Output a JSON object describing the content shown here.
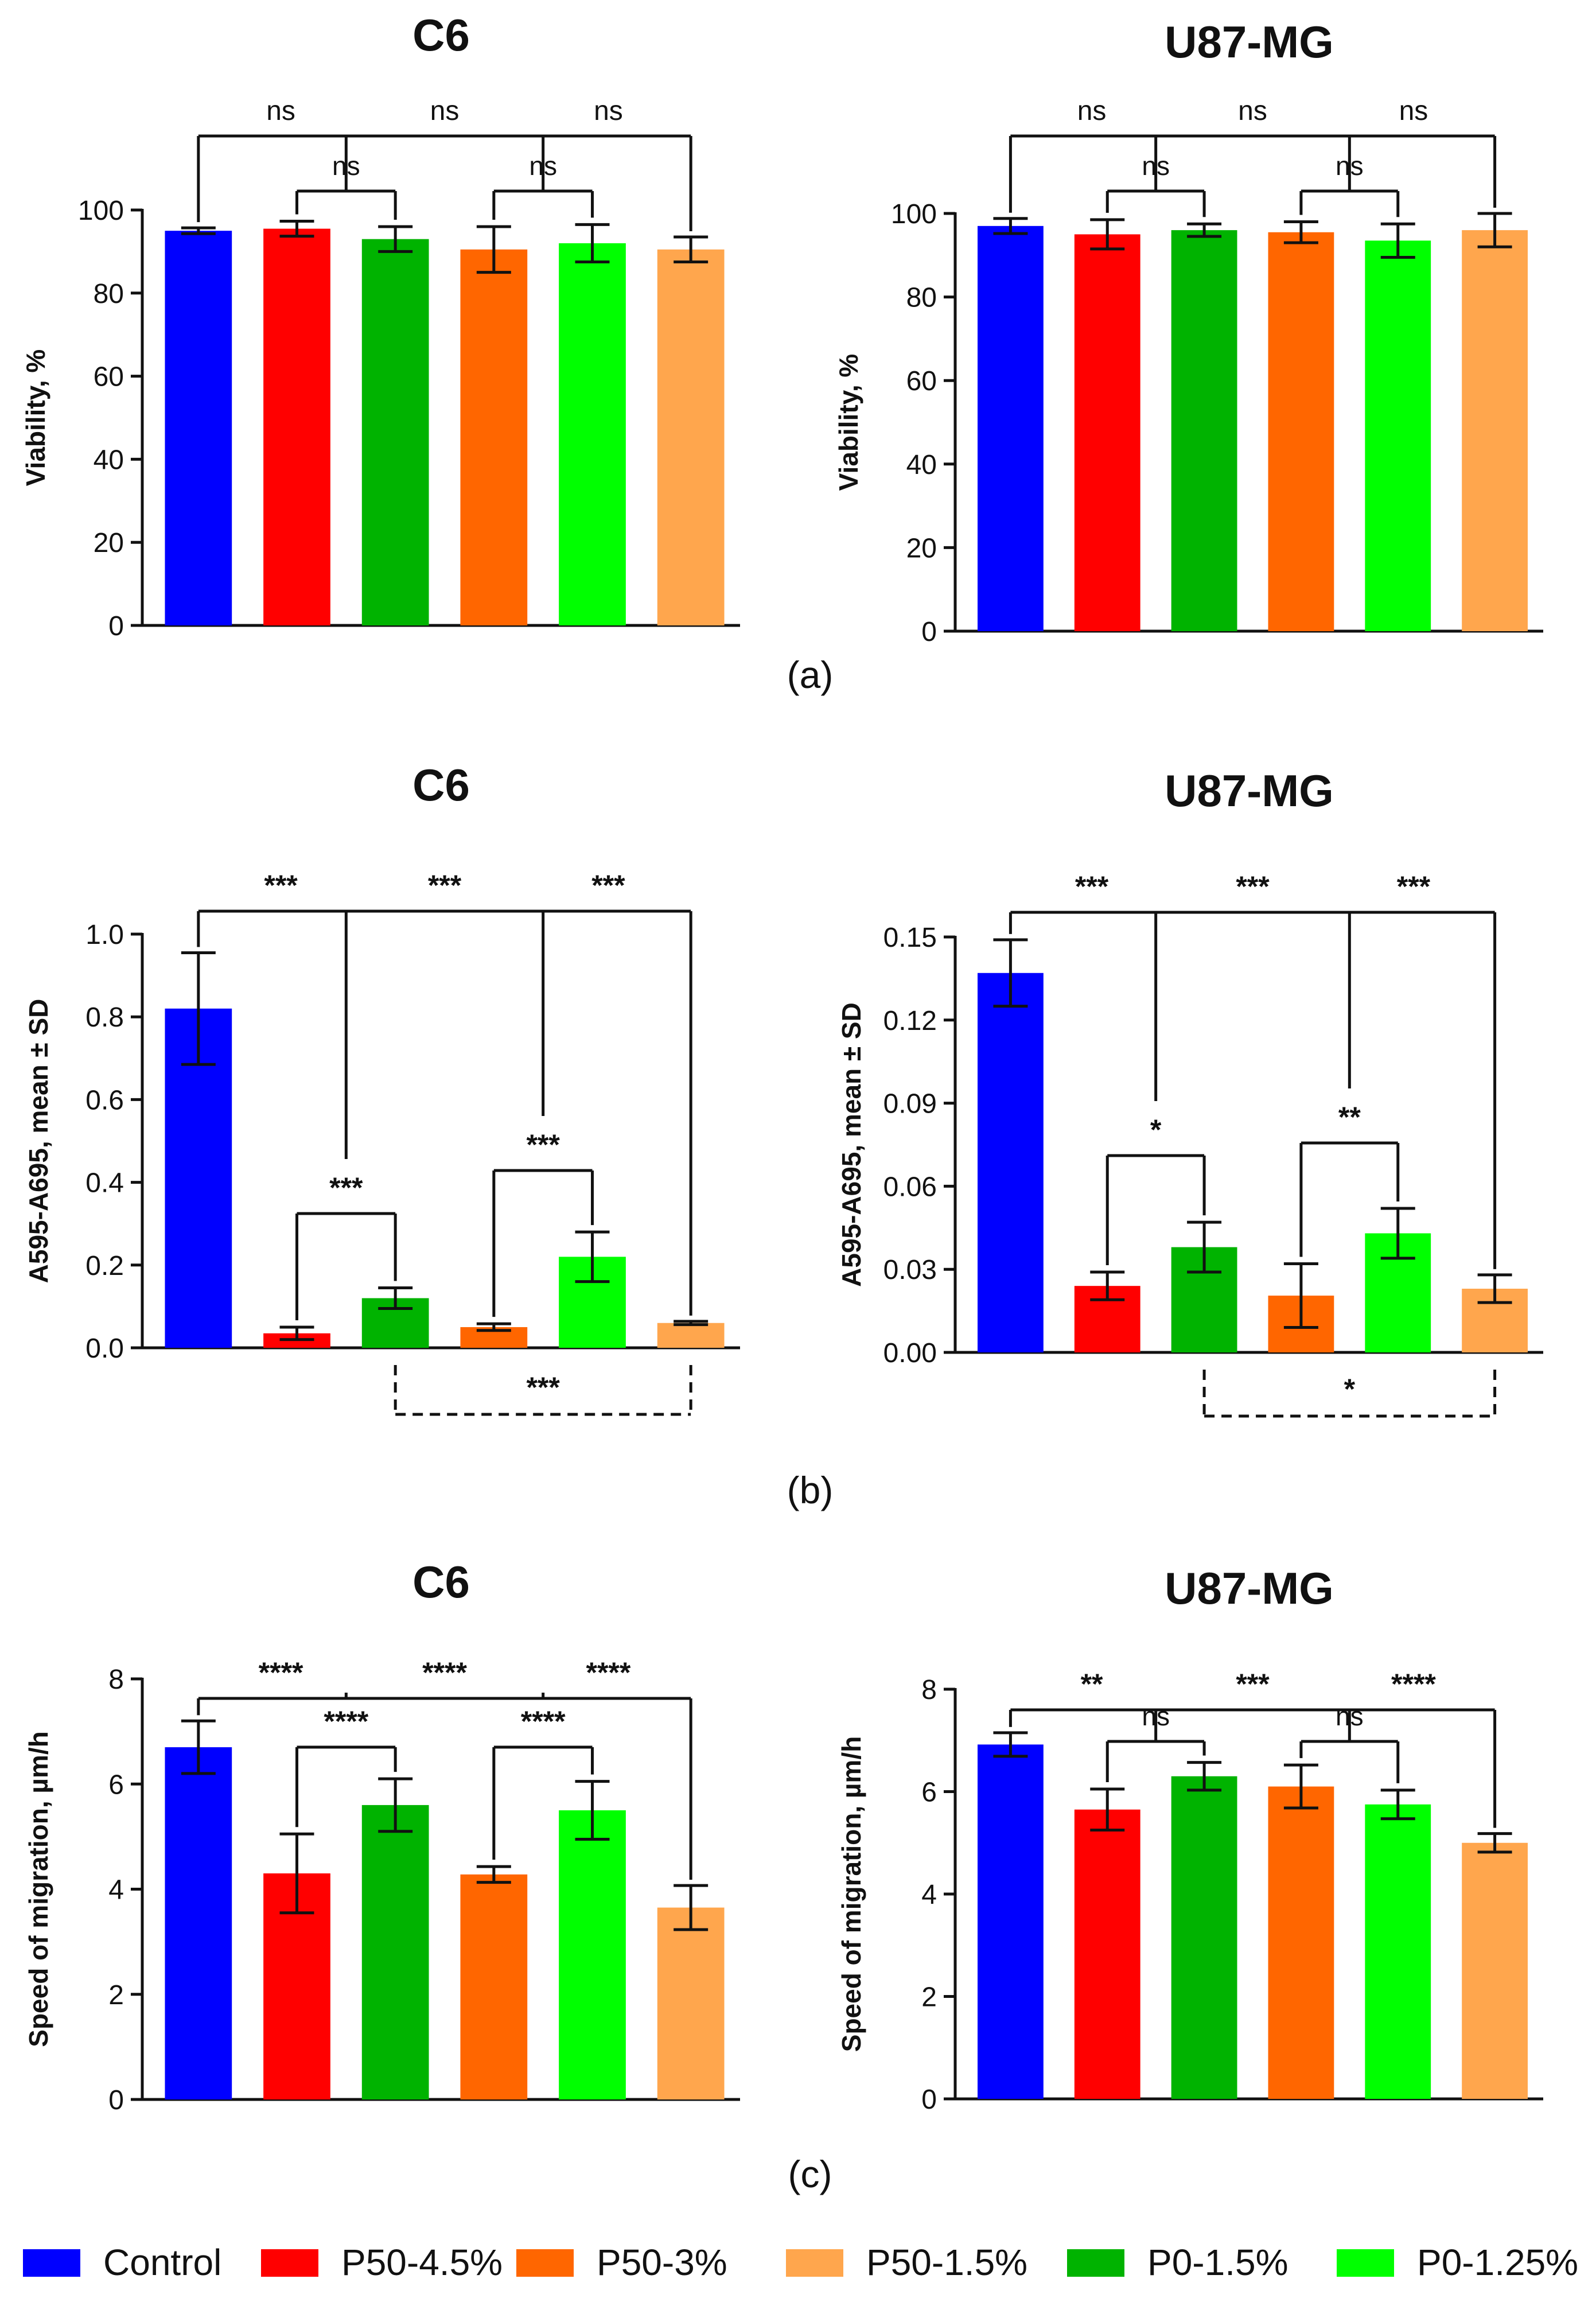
{
  "colors": {
    "Control": "#0000ff",
    "P50-4.5%": "#ff0000",
    "P50-3%": "#ff6600",
    "P50-1.5%": "#ffa64d",
    "P0-1.5%": "#00b300",
    "P0-1.25%": "#00ff00"
  },
  "panels": [
    {
      "label": "(a)"
    },
    {
      "label": "(b)"
    },
    {
      "label": "(c)"
    }
  ],
  "legend": [
    "Control",
    "P50-4.5%",
    "P50-3%",
    "P50-1.5%",
    "P0-1.5%",
    "P0-1.25%"
  ],
  "chart_data": [
    {
      "type": "bar",
      "panel": "(a)",
      "title": "C6",
      "ylabel": "Viability, %",
      "categories": [
        "Control",
        "P50-4.5%",
        "P0-1.5%",
        "P50-3%",
        "P0-1.25%",
        "P50-1.5%"
      ],
      "values": [
        95,
        95.5,
        93,
        90.5,
        92,
        90.5
      ],
      "errors": [
        0.7,
        1.8,
        3,
        5.5,
        4.5,
        3
      ],
      "ylim": [
        0,
        100
      ],
      "yticks": [
        "0",
        "20",
        "40",
        "60",
        "80",
        "100"
      ],
      "sig_top": [
        "ns",
        "ns",
        "ns"
      ],
      "sig_inner": [
        "ns",
        "ns"
      ],
      "sig_dashed": null
    },
    {
      "type": "bar",
      "panel": "(a)",
      "title": "U87-MG",
      "ylabel": "Viability, %",
      "categories": [
        "Control",
        "P50-4.5%",
        "P0-1.5%",
        "P50-3%",
        "P0-1.25%",
        "P50-1.5%"
      ],
      "values": [
        97,
        95,
        96,
        95.5,
        93.5,
        96
      ],
      "errors": [
        1.8,
        3.5,
        1.5,
        2.5,
        4,
        4
      ],
      "ylim": [
        0,
        100
      ],
      "yticks": [
        "0",
        "20",
        "40",
        "60",
        "80",
        "100"
      ],
      "sig_top": [
        "ns",
        "ns",
        "ns"
      ],
      "sig_inner": [
        "ns",
        "ns"
      ],
      "sig_dashed": null
    },
    {
      "type": "bar",
      "panel": "(b)",
      "title": "C6",
      "ylabel": "A595-A695, mean ± SD",
      "categories": [
        "Control",
        "P50-4.5%",
        "P0-1.5%",
        "P50-3%",
        "P0-1.25%",
        "P50-1.5%"
      ],
      "values": [
        0.82,
        0.035,
        0.12,
        0.05,
        0.22,
        0.06
      ],
      "errors": [
        0.135,
        0.015,
        0.025,
        0.008,
        0.06,
        0.004
      ],
      "ylim": [
        0,
        1.0
      ],
      "yticks": [
        "0.0",
        "0.2",
        "0.4",
        "0.6",
        "0.8",
        "1.0"
      ],
      "sig_top": [
        "***",
        "***",
        "***"
      ],
      "sig_inner": [
        "***",
        "***"
      ],
      "sig_dashed": "***"
    },
    {
      "type": "bar",
      "panel": "(b)",
      "title": "U87-MG",
      "ylabel": "A595-A695, mean ± SD",
      "categories": [
        "Control",
        "P50-4.5%",
        "P0-1.5%",
        "P50-3%",
        "P0-1.25%",
        "P50-1.5%"
      ],
      "values": [
        0.137,
        0.024,
        0.038,
        0.0205,
        0.043,
        0.023
      ],
      "errors": [
        0.012,
        0.005,
        0.009,
        0.0115,
        0.009,
        0.005
      ],
      "ylim": [
        0,
        0.15
      ],
      "yticks": [
        "0.00",
        "0.03",
        "0.06",
        "0.09",
        "0.12",
        "0.15"
      ],
      "sig_top": [
        "***",
        "***",
        "***"
      ],
      "sig_inner": [
        "*",
        "**"
      ],
      "sig_dashed": "*"
    },
    {
      "type": "bar",
      "panel": "(c)",
      "title": "C6",
      "ylabel": "Speed of migration, µm/h",
      "categories": [
        "Control",
        "P50-4.5%",
        "P0-1.5%",
        "P50-3%",
        "P0-1.25%",
        "P50-1.5%"
      ],
      "values": [
        6.7,
        4.3,
        5.6,
        4.28,
        5.5,
        3.65
      ],
      "errors": [
        0.5,
        0.75,
        0.5,
        0.15,
        0.55,
        0.42
      ],
      "ylim": [
        0,
        8
      ],
      "yticks": [
        "0",
        "2",
        "4",
        "6",
        "8"
      ],
      "sig_top": [
        "****",
        "****",
        "****"
      ],
      "sig_inner": [
        "****",
        "****"
      ],
      "sig_dashed": null
    },
    {
      "type": "bar",
      "panel": "(c)",
      "title": "U87-MG",
      "ylabel": "Speed of migration, µm/h",
      "categories": [
        "Control",
        "P50-4.5%",
        "P0-1.5%",
        "P50-3%",
        "P0-1.25%",
        "P50-1.5%"
      ],
      "values": [
        6.92,
        5.65,
        6.3,
        6.1,
        5.75,
        5.0
      ],
      "errors": [
        0.23,
        0.4,
        0.27,
        0.42,
        0.28,
        0.18
      ],
      "ylim": [
        0,
        8
      ],
      "yticks": [
        "0",
        "2",
        "4",
        "6",
        "8"
      ],
      "sig_top": [
        "**",
        "***",
        "****"
      ],
      "sig_inner": [
        "ns",
        "ns"
      ],
      "sig_dashed": null
    }
  ]
}
